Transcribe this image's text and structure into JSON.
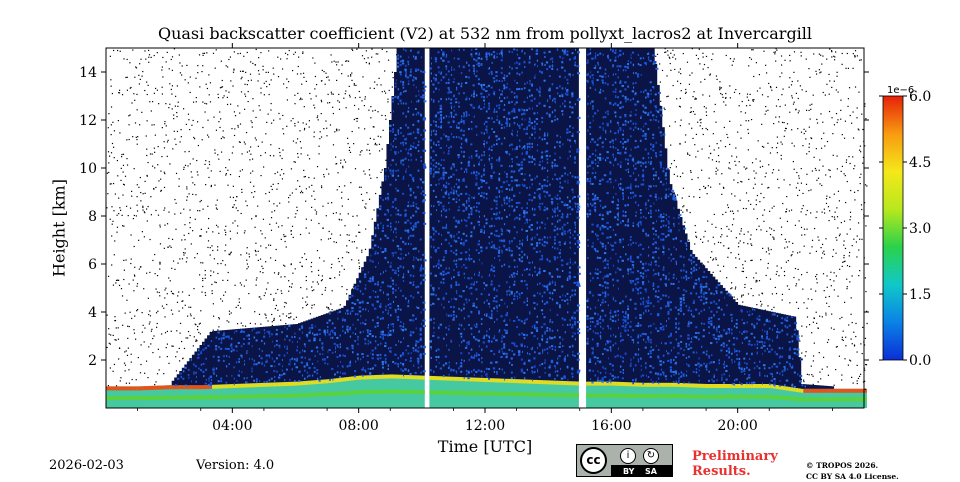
{
  "chart_data": {
    "type": "heatmap",
    "title": "Quasi backscatter coefficient (V2) at 532 nm from pollyxt_lacros2 at Invercargill",
    "xlabel": "Time [UTC]",
    "ylabel": "Height [km]",
    "x_range_hours": [
      0,
      24
    ],
    "ylim": [
      0,
      15
    ],
    "x_ticks": [
      4,
      8,
      12,
      16,
      20
    ],
    "x_tick_labels": [
      "04:00",
      "08:00",
      "12:00",
      "16:00",
      "20:00"
    ],
    "y_ticks": [
      2,
      4,
      6,
      8,
      10,
      12,
      14
    ],
    "y_tick_labels": [
      "2",
      "4",
      "6",
      "8",
      "10",
      "12",
      "14"
    ],
    "colorbar": {
      "min": 0.0,
      "max": 6.0,
      "scale_label": "1e−6",
      "ticks": [
        0.0,
        1.5,
        3.0,
        4.5,
        6.0
      ],
      "tick_labels": [
        "0.0",
        "1.5",
        "3.0",
        "4.5",
        "6.0"
      ],
      "colormap": [
        "#0a2ed6",
        "#0a82e6",
        "#10c8c8",
        "#2ad24a",
        "#b8e81e",
        "#f4e81a",
        "#f89a10",
        "#e8200a"
      ]
    },
    "data_gaps_hours": [
      10.1,
      15.05
    ],
    "boundary_layer_top_km": [
      [
        0.0,
        0.9
      ],
      [
        1.0,
        0.9
      ],
      [
        2.0,
        0.95
      ],
      [
        3.0,
        0.95
      ],
      [
        4.0,
        1.0
      ],
      [
        5.0,
        1.05
      ],
      [
        6.0,
        1.1
      ],
      [
        7.0,
        1.2
      ],
      [
        8.0,
        1.35
      ],
      [
        9.0,
        1.4
      ],
      [
        10.0,
        1.35
      ],
      [
        11.0,
        1.3
      ],
      [
        12.0,
        1.25
      ],
      [
        13.0,
        1.2
      ],
      [
        14.0,
        1.15
      ],
      [
        15.0,
        1.1
      ],
      [
        16.0,
        1.1
      ],
      [
        17.0,
        1.05
      ],
      [
        18.0,
        1.05
      ],
      [
        19.0,
        1.0
      ],
      [
        20.0,
        1.0
      ],
      [
        21.0,
        1.0
      ],
      [
        22.0,
        0.8
      ],
      [
        23.0,
        0.8
      ],
      [
        24.0,
        0.8
      ]
    ],
    "signal_top_km": [
      [
        0.0,
        0.9
      ],
      [
        2.0,
        1.0
      ],
      [
        3.3,
        3.2
      ],
      [
        6.0,
        3.5
      ],
      [
        7.5,
        4.2
      ],
      [
        8.3,
        6.5
      ],
      [
        8.8,
        10.0
      ],
      [
        9.2,
        15.0
      ],
      [
        17.3,
        15.0
      ],
      [
        17.8,
        9.5
      ],
      [
        18.5,
        6.5
      ],
      [
        20.0,
        4.3
      ],
      [
        21.8,
        3.8
      ],
      [
        22.0,
        1.0
      ],
      [
        24.0,
        0.8
      ]
    ]
  },
  "footer": {
    "date": "2026-02-03",
    "version_label": "Version:",
    "version_value": "4.0",
    "license_badge_cc": "cc",
    "license_badge_by": "BY",
    "license_badge_sa": "SA",
    "preliminary_line1": "Preliminary",
    "preliminary_line2": "Results.",
    "copyright_line1": "© TROPOS 2026.",
    "copyright_line2": "CC BY SA 4.0 License.",
    "preliminary_color": "#e8302e"
  }
}
